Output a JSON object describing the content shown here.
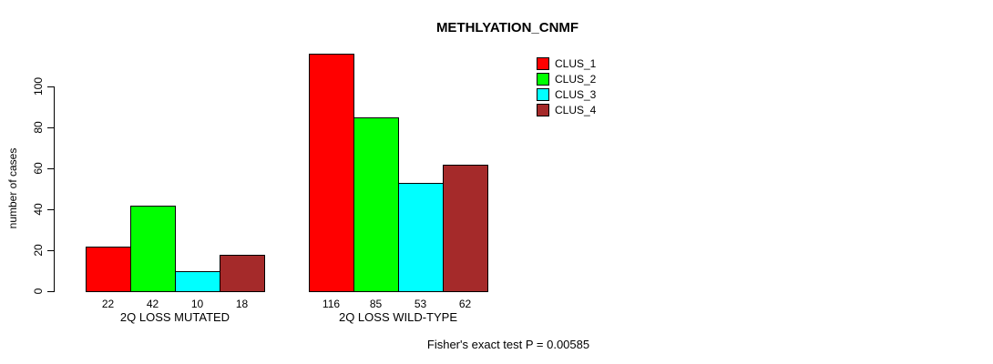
{
  "title": "METHLYATION_CNMF",
  "ylabel": "number of cases",
  "footer": "Fisher's exact test P = 0.00585",
  "chart_data": {
    "type": "bar",
    "title": "METHLYATION_CNMF",
    "xlabel": "",
    "ylabel": "number of cases",
    "ylim": [
      0,
      100
    ],
    "yticks": [
      0,
      20,
      40,
      60,
      80,
      100
    ],
    "grid": false,
    "legend_position": "top-right",
    "categories": [
      "2Q LOSS MUTATED",
      "2Q LOSS WILD-TYPE"
    ],
    "series": [
      {
        "name": "CLUS_1",
        "color": "#FF0000",
        "values": [
          22,
          116
        ]
      },
      {
        "name": "CLUS_2",
        "color": "#00FF00",
        "values": [
          42,
          85
        ]
      },
      {
        "name": "CLUS_3",
        "color": "#00FFFF",
        "values": [
          10,
          53
        ]
      },
      {
        "name": "CLUS_4",
        "color": "#A52A2A",
        "values": [
          18,
          62
        ]
      }
    ],
    "bar_value_labels": [
      [
        "22",
        "42",
        "10",
        "18"
      ],
      [
        "116",
        "85",
        "53",
        "62"
      ]
    ],
    "annotation": "Fisher's exact test P = 0.00585"
  }
}
